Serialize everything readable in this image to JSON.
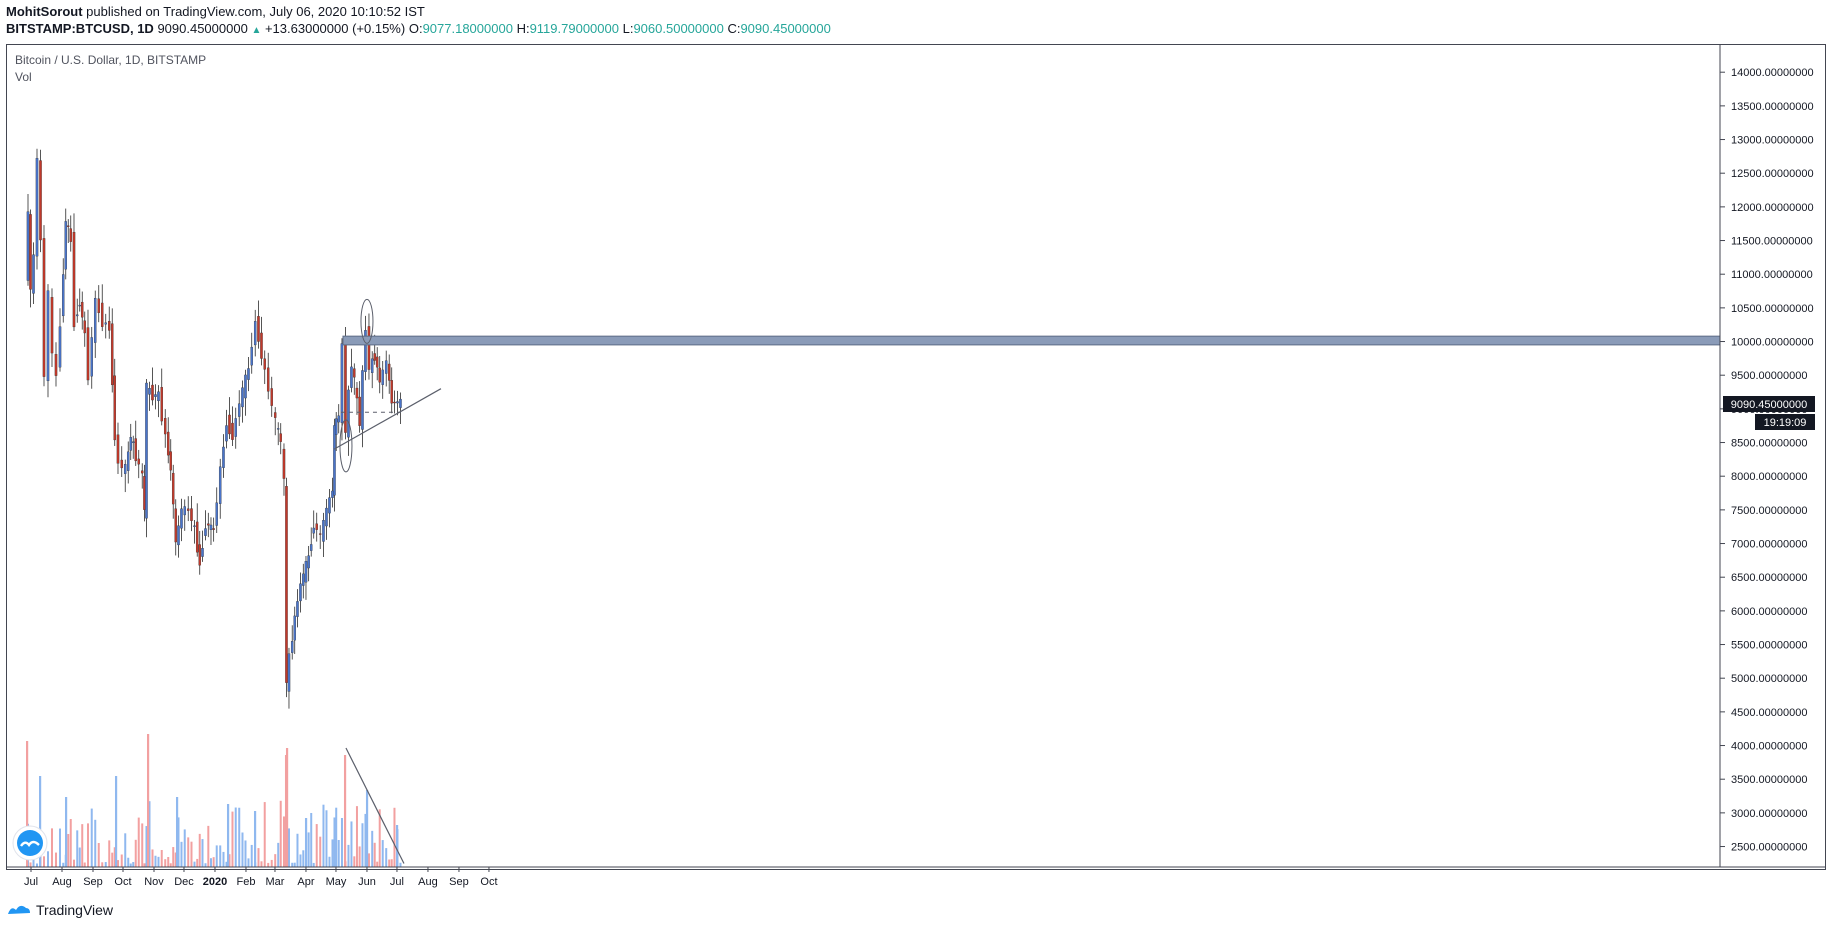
{
  "header": {
    "author": "MohitSorout",
    "published": "published on TradingView.com, July 06, 2020 10:10:52 IST",
    "symbol": "BITSTAMP:BTCUSD, 1D",
    "last": "9090.45000000",
    "change": "+13.63000000 (+0.15%)",
    "o_label": "O:",
    "o": "9077.18000000",
    "h_label": "H:",
    "h": "9119.79000000",
    "l_label": "L:",
    "l": "9060.50000000",
    "c_label": "C:",
    "c": "9090.45000000"
  },
  "legend": {
    "title": "Bitcoin / U.S. Dollar, 1D, BITSTAMP",
    "vol": "Vol"
  },
  "price_tag": {
    "value": "9090.45000000",
    "countdown": "19:19:09"
  },
  "footer": {
    "brand": "TradingView"
  },
  "colors": {
    "up": "#4a74c9",
    "down": "#c0392b",
    "vol_up": "#8fb8ef",
    "vol_down": "#f2a0a0",
    "resist": "#8a9bb8"
  },
  "chart_data": {
    "type": "candlestick",
    "title": "Bitcoin / U.S. Dollar, 1D, BITSTAMP",
    "x_ticks": [
      "Jul",
      "Aug",
      "Sep",
      "Oct",
      "Nov",
      "Dec",
      "2020",
      "Feb",
      "Mar",
      "Apr",
      "May",
      "Jun",
      "Jul",
      "Aug",
      "Sep",
      "Oct"
    ],
    "y_ticks": [
      "14000.00000000",
      "13500.00000000",
      "13000.00000000",
      "12500.00000000",
      "12000.00000000",
      "11500.00000000",
      "11000.00000000",
      "10500.00000000",
      "10000.00000000",
      "9500.00000000",
      "9000.00000000",
      "8500.00000000",
      "8000.00000000",
      "7500.00000000",
      "7000.00000000",
      "6500.00000000",
      "6000.00000000",
      "5500.00000000",
      "5000.00000000",
      "4500.00000000",
      "4000.00000000",
      "3500.00000000",
      "3000.00000000",
      "2500.00000000"
    ],
    "ylim": [
      2300,
      14300
    ],
    "close_series": [
      [
        "2019-06-27",
        10800
      ],
      [
        "2019-06-29",
        12000
      ],
      [
        "2019-07-02",
        10700
      ],
      [
        "2019-07-05",
        11300
      ],
      [
        "2019-07-09",
        12700
      ],
      [
        "2019-07-12",
        11500
      ],
      [
        "2019-07-16",
        9500
      ],
      [
        "2019-07-20",
        10700
      ],
      [
        "2019-07-24",
        9800
      ],
      [
        "2019-07-28",
        9500
      ],
      [
        "2019-08-01",
        10300
      ],
      [
        "2019-08-06",
        11800
      ],
      [
        "2019-08-11",
        11500
      ],
      [
        "2019-08-15",
        10300
      ],
      [
        "2019-08-20",
        10600
      ],
      [
        "2019-08-25",
        10100
      ],
      [
        "2019-08-29",
        9500
      ],
      [
        "2019-09-05",
        10600
      ],
      [
        "2019-09-12",
        10300
      ],
      [
        "2019-09-19",
        10200
      ],
      [
        "2019-09-24",
        8600
      ],
      [
        "2019-09-28",
        8200
      ],
      [
        "2019-10-05",
        8100
      ],
      [
        "2019-10-10",
        8600
      ],
      [
        "2019-10-15",
        8300
      ],
      [
        "2019-10-22",
        8000
      ],
      [
        "2019-10-23",
        7500
      ],
      [
        "2019-10-26",
        9300
      ],
      [
        "2019-11-01",
        9200
      ],
      [
        "2019-11-07",
        9200
      ],
      [
        "2019-11-14",
        8600
      ],
      [
        "2019-11-19",
        8100
      ],
      [
        "2019-11-24",
        7000
      ],
      [
        "2019-11-30",
        7500
      ],
      [
        "2019-12-07",
        7500
      ],
      [
        "2019-12-13",
        7200
      ],
      [
        "2019-12-18",
        6700
      ],
      [
        "2019-12-24",
        7300
      ],
      [
        "2020-01-01",
        7200
      ],
      [
        "2020-01-08",
        8100
      ],
      [
        "2020-01-14",
        8800
      ],
      [
        "2020-01-20",
        8600
      ],
      [
        "2020-01-27",
        9100
      ],
      [
        "2020-02-05",
        9600
      ],
      [
        "2020-02-12",
        10300
      ],
      [
        "2020-02-18",
        9800
      ],
      [
        "2020-02-25",
        9300
      ],
      [
        "2020-03-03",
        8800
      ],
      [
        "2020-03-08",
        8500
      ],
      [
        "2020-03-12",
        7900
      ],
      [
        "2020-03-13",
        4900
      ],
      [
        "2020-03-17",
        5300
      ],
      [
        "2020-03-22",
        5900
      ],
      [
        "2020-03-28",
        6400
      ],
      [
        "2020-04-05",
        6800
      ],
      [
        "2020-04-10",
        7300
      ],
      [
        "2020-04-17",
        7100
      ],
      [
        "2020-04-23",
        7500
      ],
      [
        "2020-04-29",
        7800
      ],
      [
        "2020-04-30",
        8700
      ],
      [
        "2020-05-05",
        8900
      ],
      [
        "2020-05-09",
        9900
      ],
      [
        "2020-05-12",
        8700
      ],
      [
        "2020-05-18",
        9700
      ],
      [
        "2020-05-26",
        8800
      ],
      [
        "2020-06-01",
        10200
      ],
      [
        "2020-06-05",
        9600
      ],
      [
        "2020-06-10",
        9800
      ],
      [
        "2020-06-15",
        9400
      ],
      [
        "2020-06-22",
        9700
      ],
      [
        "2020-06-27",
        9100
      ],
      [
        "2020-07-03",
        9100
      ],
      [
        "2020-07-06",
        9090
      ]
    ],
    "volume_series": [
      [
        "2019-06-27",
        4100
      ],
      [
        "2019-07-10",
        3600
      ],
      [
        "2019-08-05",
        3300
      ],
      [
        "2019-09-24",
        3600
      ],
      [
        "2019-10-26",
        4200
      ],
      [
        "2019-11-24",
        3300
      ],
      [
        "2020-01-14",
        3200
      ],
      [
        "2020-02-10",
        3100
      ],
      [
        "2020-03-12",
        3900
      ],
      [
        "2020-03-13",
        4000
      ],
      [
        "2020-04-01",
        3000
      ],
      [
        "2020-05-10",
        3900
      ],
      [
        "2020-06-01",
        3400
      ],
      [
        "2020-07-01",
        2900
      ]
    ],
    "annotations": [
      {
        "type": "resistance_zone",
        "y_range": [
          9950,
          10080
        ],
        "from": "2020-05-08",
        "to_edge": true
      },
      {
        "type": "trendline",
        "from": [
          "2020-04-29",
          8400
        ],
        "to": [
          "2020-08-14",
          9300
        ]
      },
      {
        "type": "dashed_level",
        "value": 8950,
        "from": "2020-05-06",
        "to": "2020-07-08"
      },
      {
        "type": "volume_trendline",
        "from": [
          "2020-05-11",
          4000
        ],
        "to": [
          "2020-07-08",
          2350
        ]
      }
    ]
  }
}
